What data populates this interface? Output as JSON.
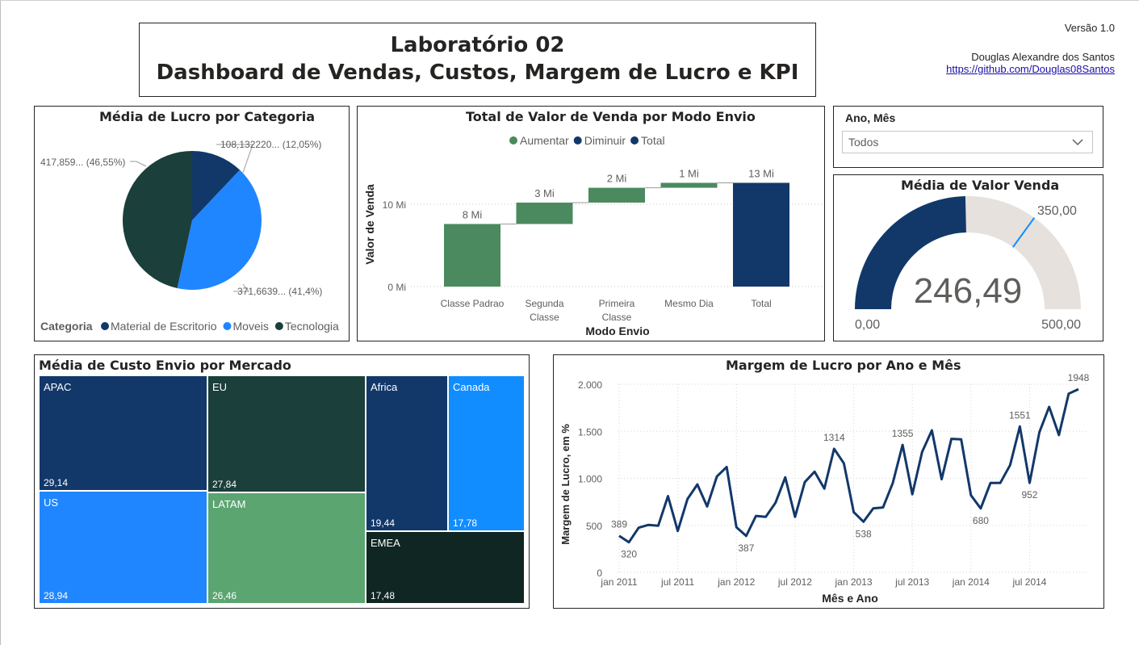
{
  "header": {
    "title_line1": "Laboratório 02",
    "title_line2": "Dashboard de Vendas, Custos, Margem de Lucro e KPI",
    "version": "Versão 1.0",
    "author": "Douglas Alexandre dos Santos",
    "link": "https://github.com/Douglas08Santos"
  },
  "colors": {
    "dark_blue": "#12386a",
    "blue": "#1f86ff",
    "dark_green": "#1b3f3a",
    "green": "#4a8a5e",
    "light_green": "#5ba571",
    "darker_green": "#0f2622",
    "light_blue": "#118dff",
    "gauge_bg": "#e6e1dc",
    "line": "#12386a"
  },
  "slicer": {
    "label": "Ano, Mês",
    "value": "Todos",
    "icon": "chevron-down-icon"
  },
  "chart_data": [
    {
      "id": "pie",
      "type": "pie",
      "title": "Média de Lucro por Categoria",
      "legend_title": "Categoria",
      "legend_position": "bottom",
      "slices": [
        {
          "name": "Material de Escritorio",
          "label": "108,132220... (12,05%)",
          "percent": 12.05
        },
        {
          "name": "Moveis",
          "label": "371,6639... (41,4%)",
          "percent": 41.4
        },
        {
          "name": "Tecnologia",
          "label": "417,859... (46,55%)",
          "percent": 46.55
        }
      ]
    },
    {
      "id": "waterfall",
      "type": "bar",
      "subtype": "waterfall",
      "title": "Total de Valor de Venda por Modo Envio",
      "xlabel": "Modo Envio",
      "ylabel": "Valor de Venda",
      "legend": [
        "Aumentar",
        "Diminuir",
        "Total"
      ],
      "legend_position": "top",
      "y_ticks": [
        "0 Mi",
        "10 Mi"
      ],
      "ylim": [
        0,
        13
      ],
      "categories": [
        "Classe Padrao",
        "Segunda Classe",
        "Primeira Classe",
        "Mesmo Dia",
        "Total"
      ],
      "category_lines": [
        [
          "Classe Padrao"
        ],
        [
          "Segunda",
          "Classe"
        ],
        [
          "Primeira",
          "Classe"
        ],
        [
          "Mesmo Dia"
        ],
        [
          "Total"
        ]
      ],
      "values": [
        7.6,
        2.6,
        1.8,
        0.6,
        12.6
      ],
      "data_labels": [
        "8 Mi",
        "3 Mi",
        "2 Mi",
        "1 Mi",
        "13 Mi"
      ],
      "kinds": [
        "increase",
        "increase",
        "increase",
        "increase",
        "total"
      ]
    },
    {
      "id": "gauge",
      "type": "gauge",
      "title": "Média de Valor Venda",
      "value": 246.49,
      "value_label": "246,49",
      "min": 0,
      "min_label": "0,00",
      "max": 500,
      "max_label": "500,00",
      "target": 350,
      "target_label": "350,00"
    },
    {
      "id": "treemap",
      "type": "treemap",
      "title": "Média de Custo Envio por Mercado",
      "items": [
        {
          "name": "APAC",
          "value": 29.14,
          "label": "29,14"
        },
        {
          "name": "US",
          "value": 28.94,
          "label": "28,94"
        },
        {
          "name": "EU",
          "value": 27.84,
          "label": "27,84"
        },
        {
          "name": "LATAM",
          "value": 26.46,
          "label": "26,46"
        },
        {
          "name": "Africa",
          "value": 19.44,
          "label": "19,44"
        },
        {
          "name": "EMEA",
          "value": 17.48,
          "label": "17,48"
        },
        {
          "name": "Canada",
          "value": 17.78,
          "label": "17,78"
        }
      ]
    },
    {
      "id": "line",
      "type": "line",
      "title": "Margem de Lucro por Ano e Mês",
      "xlabel": "Mês e Ano",
      "ylabel": "Margem de Lucro, em %",
      "ylim": [
        0,
        2000
      ],
      "y_ticks": [
        0,
        500,
        1000,
        1500,
        2000
      ],
      "y_tick_labels": [
        "0",
        "500",
        "1.000",
        "1.500",
        "2.000"
      ],
      "x_ticks": [
        "jan 2011",
        "jul 2011",
        "jan 2012",
        "jul 2012",
        "jan 2013",
        "jul 2013",
        "jan 2014",
        "jul 2014"
      ],
      "grid": true,
      "values": [
        389,
        320,
        475,
        505,
        495,
        810,
        440,
        780,
        935,
        700,
        1020,
        1120,
        480,
        387,
        600,
        590,
        740,
        1010,
        590,
        960,
        1070,
        890,
        1314,
        1160,
        640,
        538,
        680,
        690,
        950,
        1355,
        830,
        1280,
        1510,
        990,
        1420,
        1415,
        820,
        680,
        950,
        950,
        1140,
        1551,
        952,
        1490,
        1760,
        1460,
        1900,
        1948
      ],
      "point_labels": [
        {
          "index": 0,
          "label": "389"
        },
        {
          "index": 1,
          "label": "320"
        },
        {
          "index": 13,
          "label": "387"
        },
        {
          "index": 22,
          "label": "1314"
        },
        {
          "index": 25,
          "label": "538"
        },
        {
          "index": 29,
          "label": "1355"
        },
        {
          "index": 37,
          "label": "680"
        },
        {
          "index": 41,
          "label": "1551"
        },
        {
          "index": 42,
          "label": "952"
        },
        {
          "index": 47,
          "label": "1948"
        }
      ]
    }
  ]
}
